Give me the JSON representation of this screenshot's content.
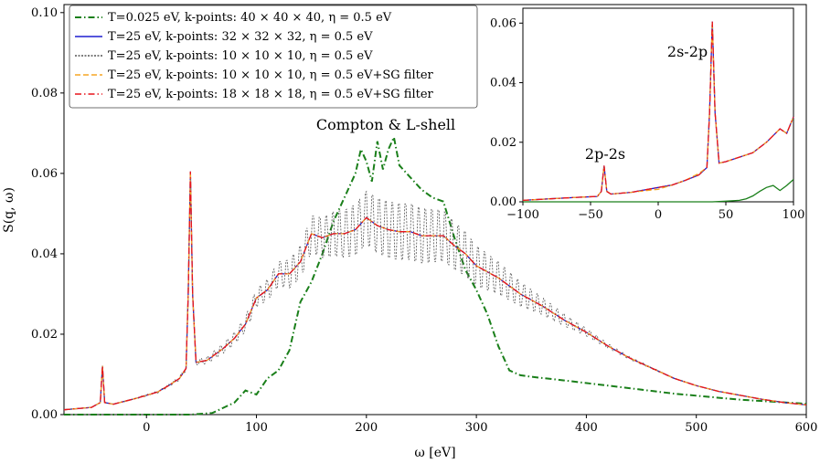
{
  "chart_data": [
    {
      "id": "main",
      "type": "line",
      "xlabel": "ω [eV]",
      "ylabel": "S(q, ω)",
      "xlim": [
        -75,
        600
      ],
      "ylim": [
        0,
        0.102
      ],
      "xticks": [
        0,
        100,
        200,
        300,
        400,
        500,
        600
      ],
      "xtick_labels": [
        "0",
        "100",
        "200",
        "300",
        "400",
        "500",
        "600"
      ],
      "yticks": [
        0,
        0.02,
        0.04,
        0.06,
        0.08,
        0.1
      ],
      "ytick_labels": [
        "0.00",
        "0.02",
        "0.04",
        "0.06",
        "0.08",
        "0.10"
      ],
      "annotation": "Compton & L-shell",
      "legend": "top-left",
      "series": [
        {
          "name": "T=0.025 eV, k-points: 40 × 40 × 40, η = 0.5 eV",
          "color": "#1a7f1a",
          "style": "dashdot",
          "x": [
            -75,
            40,
            60,
            80,
            90,
            100,
            110,
            120,
            130,
            140,
            150,
            160,
            170,
            180,
            190,
            195,
            200,
            205,
            210,
            215,
            220,
            225,
            230,
            240,
            250,
            260,
            270,
            280,
            290,
            300,
            310,
            320,
            330,
            340,
            350,
            380,
            420,
            480,
            540,
            600
          ],
          "y": [
            0,
            0,
            0.0004,
            0.003,
            0.006,
            0.005,
            0.009,
            0.011,
            0.016,
            0.028,
            0.033,
            0.04,
            0.048,
            0.054,
            0.06,
            0.066,
            0.063,
            0.058,
            0.068,
            0.061,
            0.066,
            0.069,
            0.062,
            0.059,
            0.056,
            0.054,
            0.053,
            0.044,
            0.036,
            0.031,
            0.025,
            0.017,
            0.011,
            0.0098,
            0.0094,
            0.0085,
            0.0072,
            0.0052,
            0.0037,
            0.0027
          ]
        },
        {
          "name": "T=25 eV, k-points: 32 × 32 × 32, η = 0.5 eV",
          "color": "#1f1fd0",
          "style": "solid",
          "x": [
            -75,
            -50,
            -42,
            -40,
            -38,
            -30,
            -10,
            0,
            10,
            20,
            30,
            36,
            38,
            40,
            42,
            45,
            55,
            70,
            80,
            90,
            100,
            110,
            120,
            130,
            140,
            150,
            160,
            170,
            180,
            190,
            200,
            210,
            220,
            230,
            240,
            250,
            260,
            270,
            280,
            290,
            300,
            320,
            340,
            360,
            380,
            400,
            420,
            440,
            460,
            480,
            500,
            520,
            540,
            560,
            580,
            600
          ],
          "y": [
            0.0012,
            0.0018,
            0.003,
            0.0121,
            0.003,
            0.0026,
            0.004,
            0.0048,
            0.0056,
            0.0072,
            0.009,
            0.0115,
            0.03,
            0.0605,
            0.03,
            0.013,
            0.0135,
            0.0165,
            0.019,
            0.0225,
            0.029,
            0.031,
            0.035,
            0.035,
            0.038,
            0.045,
            0.044,
            0.045,
            0.045,
            0.046,
            0.049,
            0.047,
            0.046,
            0.0455,
            0.0455,
            0.0445,
            0.0445,
            0.0445,
            0.042,
            0.04,
            0.037,
            0.034,
            0.03,
            0.027,
            0.0235,
            0.0205,
            0.017,
            0.014,
            0.0115,
            0.009,
            0.0072,
            0.0058,
            0.0048,
            0.0038,
            0.003,
            0.0024
          ]
        },
        {
          "name": "T=25 eV, k-points: 10 × 10 × 10, η = 0.5 eV",
          "color": "#555555",
          "style": "dotted",
          "x": [
            -75,
            -50,
            -42,
            -40,
            -38,
            -30,
            -10,
            0,
            10,
            20,
            30,
            36,
            38,
            40,
            42,
            45,
            55,
            70,
            80,
            90,
            100,
            110,
            120,
            130,
            140,
            150,
            160,
            170,
            180,
            190,
            200,
            210,
            220,
            230,
            240,
            250,
            260,
            270,
            280,
            290,
            300,
            320,
            340,
            360,
            380,
            400,
            420,
            440,
            460,
            480,
            500,
            520,
            540,
            560,
            580,
            600
          ],
          "y": [
            0.0012,
            0.0018,
            0.003,
            0.0121,
            0.003,
            0.0026,
            0.004,
            0.0048,
            0.0056,
            0.0072,
            0.009,
            0.0115,
            0.03,
            0.0605,
            0.03,
            0.013,
            0.0135,
            0.0165,
            0.019,
            0.0225,
            0.029,
            0.031,
            0.035,
            0.035,
            0.038,
            0.045,
            0.044,
            0.045,
            0.045,
            0.046,
            0.049,
            0.047,
            0.046,
            0.0455,
            0.0455,
            0.0445,
            0.0445,
            0.0445,
            0.042,
            0.04,
            0.037,
            0.034,
            0.03,
            0.027,
            0.0235,
            0.0205,
            0.017,
            0.014,
            0.0115,
            0.009,
            0.0072,
            0.0058,
            0.0048,
            0.0038,
            0.003,
            0.0024
          ],
          "oscillation": {
            "amplitude_peak": 0.008,
            "center": 230,
            "width": 120,
            "period": 6
          }
        },
        {
          "name": "T=25 eV, k-points: 10 × 10 × 10, η = 0.5 eV+SG filter",
          "color": "#f5a623",
          "style": "dashed",
          "x": [
            -75,
            -50,
            -42,
            -40,
            -38,
            -30,
            -10,
            0,
            10,
            20,
            30,
            36,
            38,
            40,
            42,
            45,
            55,
            70,
            80,
            90,
            100,
            110,
            120,
            130,
            140,
            150,
            160,
            170,
            180,
            190,
            200,
            210,
            220,
            230,
            240,
            250,
            260,
            270,
            280,
            290,
            300,
            320,
            340,
            360,
            380,
            400,
            420,
            440,
            460,
            480,
            500,
            520,
            540,
            560,
            580,
            600
          ],
          "y": [
            0.0012,
            0.0018,
            0.003,
            0.0121,
            0.003,
            0.0026,
            0.004,
            0.0048,
            0.0056,
            0.0072,
            0.009,
            0.0115,
            0.03,
            0.0605,
            0.03,
            0.013,
            0.0135,
            0.0165,
            0.019,
            0.0225,
            0.029,
            0.031,
            0.035,
            0.035,
            0.038,
            0.045,
            0.044,
            0.045,
            0.045,
            0.046,
            0.049,
            0.047,
            0.046,
            0.0455,
            0.0455,
            0.0445,
            0.0445,
            0.0445,
            0.042,
            0.04,
            0.037,
            0.034,
            0.03,
            0.027,
            0.0235,
            0.0205,
            0.017,
            0.014,
            0.0115,
            0.009,
            0.0072,
            0.0058,
            0.0048,
            0.0038,
            0.003,
            0.0024
          ]
        },
        {
          "name": "T=25 eV, k-points: 18 × 18 × 18, η = 0.5 eV+SG filter",
          "color": "#e8141c",
          "style": "dashdot",
          "x": [
            -75,
            -50,
            -42,
            -40,
            -38,
            -30,
            -10,
            0,
            10,
            20,
            30,
            36,
            38,
            40,
            42,
            45,
            55,
            70,
            80,
            90,
            100,
            110,
            120,
            130,
            140,
            150,
            160,
            170,
            180,
            190,
            200,
            210,
            220,
            230,
            240,
            250,
            260,
            270,
            280,
            290,
            300,
            320,
            340,
            360,
            380,
            400,
            420,
            440,
            460,
            480,
            500,
            520,
            540,
            560,
            580,
            600
          ],
          "y": [
            0.0012,
            0.0018,
            0.003,
            0.0121,
            0.003,
            0.0026,
            0.004,
            0.0048,
            0.0056,
            0.0072,
            0.009,
            0.0115,
            0.03,
            0.0605,
            0.03,
            0.013,
            0.0135,
            0.0165,
            0.019,
            0.0225,
            0.029,
            0.031,
            0.035,
            0.035,
            0.038,
            0.045,
            0.044,
            0.045,
            0.045,
            0.046,
            0.049,
            0.047,
            0.046,
            0.0455,
            0.0455,
            0.0445,
            0.0445,
            0.0445,
            0.042,
            0.04,
            0.037,
            0.034,
            0.03,
            0.027,
            0.0235,
            0.0205,
            0.017,
            0.014,
            0.0115,
            0.009,
            0.0072,
            0.0058,
            0.0048,
            0.0038,
            0.003,
            0.0024
          ]
        }
      ]
    },
    {
      "id": "inset",
      "type": "line",
      "xlim": [
        -100,
        100
      ],
      "ylim": [
        0,
        0.065
      ],
      "xticks": [
        -100,
        -50,
        0,
        50,
        100
      ],
      "xtick_labels": [
        "−100",
        "−50",
        "0",
        "50",
        "100"
      ],
      "yticks": [
        0,
        0.02,
        0.04,
        0.06
      ],
      "ytick_labels": [
        "0.00",
        "0.02",
        "0.04",
        "0.06"
      ],
      "annotations": [
        "2p-2s",
        "2s-2p"
      ],
      "series": [
        {
          "name": "T=0.025 eV, 40 × 40 × 40",
          "color": "#1a7f1a",
          "style": "solid",
          "x": [
            -100,
            40,
            50,
            60,
            65,
            70,
            75,
            80,
            85,
            90,
            95,
            100
          ],
          "y": [
            0,
            0,
            0.0002,
            0.0005,
            0.001,
            0.002,
            0.0035,
            0.0048,
            0.0055,
            0.0038,
            0.0055,
            0.0075
          ]
        },
        {
          "name": "T=25 eV, 32 × 32 × 32",
          "color": "#1f1fd0",
          "style": "solid",
          "x": [
            -100,
            -80,
            -60,
            -45,
            -42,
            -40,
            -38,
            -35,
            -20,
            0,
            10,
            20,
            30,
            36,
            38,
            40,
            42,
            45,
            50,
            60,
            70,
            80,
            90,
            95,
            100
          ],
          "y": [
            0.0005,
            0.001,
            0.0015,
            0.0018,
            0.0035,
            0.0121,
            0.0035,
            0.0026,
            0.0032,
            0.0048,
            0.0056,
            0.0072,
            0.009,
            0.0115,
            0.03,
            0.0605,
            0.03,
            0.013,
            0.0135,
            0.015,
            0.0165,
            0.02,
            0.0245,
            0.023,
            0.0285
          ]
        },
        {
          "name": "T=25 eV, 10 × 10 × 10 + SG filter",
          "color": "#f5a623",
          "style": "dashed",
          "x": [
            -100,
            -80,
            -60,
            -45,
            -42,
            -40,
            -38,
            -35,
            -20,
            0,
            10,
            20,
            30,
            36,
            38,
            40,
            42,
            45,
            50,
            60,
            70,
            80,
            90,
            95,
            100
          ],
          "y": [
            0.0005,
            0.001,
            0.0015,
            0.0018,
            0.0035,
            0.0121,
            0.0035,
            0.0026,
            0.0032,
            0.0042,
            0.0056,
            0.0072,
            0.0095,
            0.0115,
            0.03,
            0.0605,
            0.03,
            0.013,
            0.0135,
            0.015,
            0.0165,
            0.02,
            0.0245,
            0.023,
            0.0285
          ]
        },
        {
          "name": "T=25 eV, 18 × 18 × 18 + SG filter",
          "color": "#e8141c",
          "style": "dashdot",
          "x": [
            -100,
            -80,
            -60,
            -45,
            -42,
            -40,
            -38,
            -35,
            -20,
            0,
            10,
            20,
            30,
            36,
            38,
            40,
            42,
            45,
            50,
            60,
            70,
            80,
            90,
            95,
            100
          ],
          "y": [
            0.0005,
            0.001,
            0.0015,
            0.0018,
            0.0035,
            0.0121,
            0.0035,
            0.0026,
            0.0032,
            0.0048,
            0.0056,
            0.0072,
            0.009,
            0.0115,
            0.03,
            0.0605,
            0.03,
            0.013,
            0.0135,
            0.015,
            0.0165,
            0.02,
            0.0245,
            0.023,
            0.0285
          ]
        }
      ]
    }
  ]
}
